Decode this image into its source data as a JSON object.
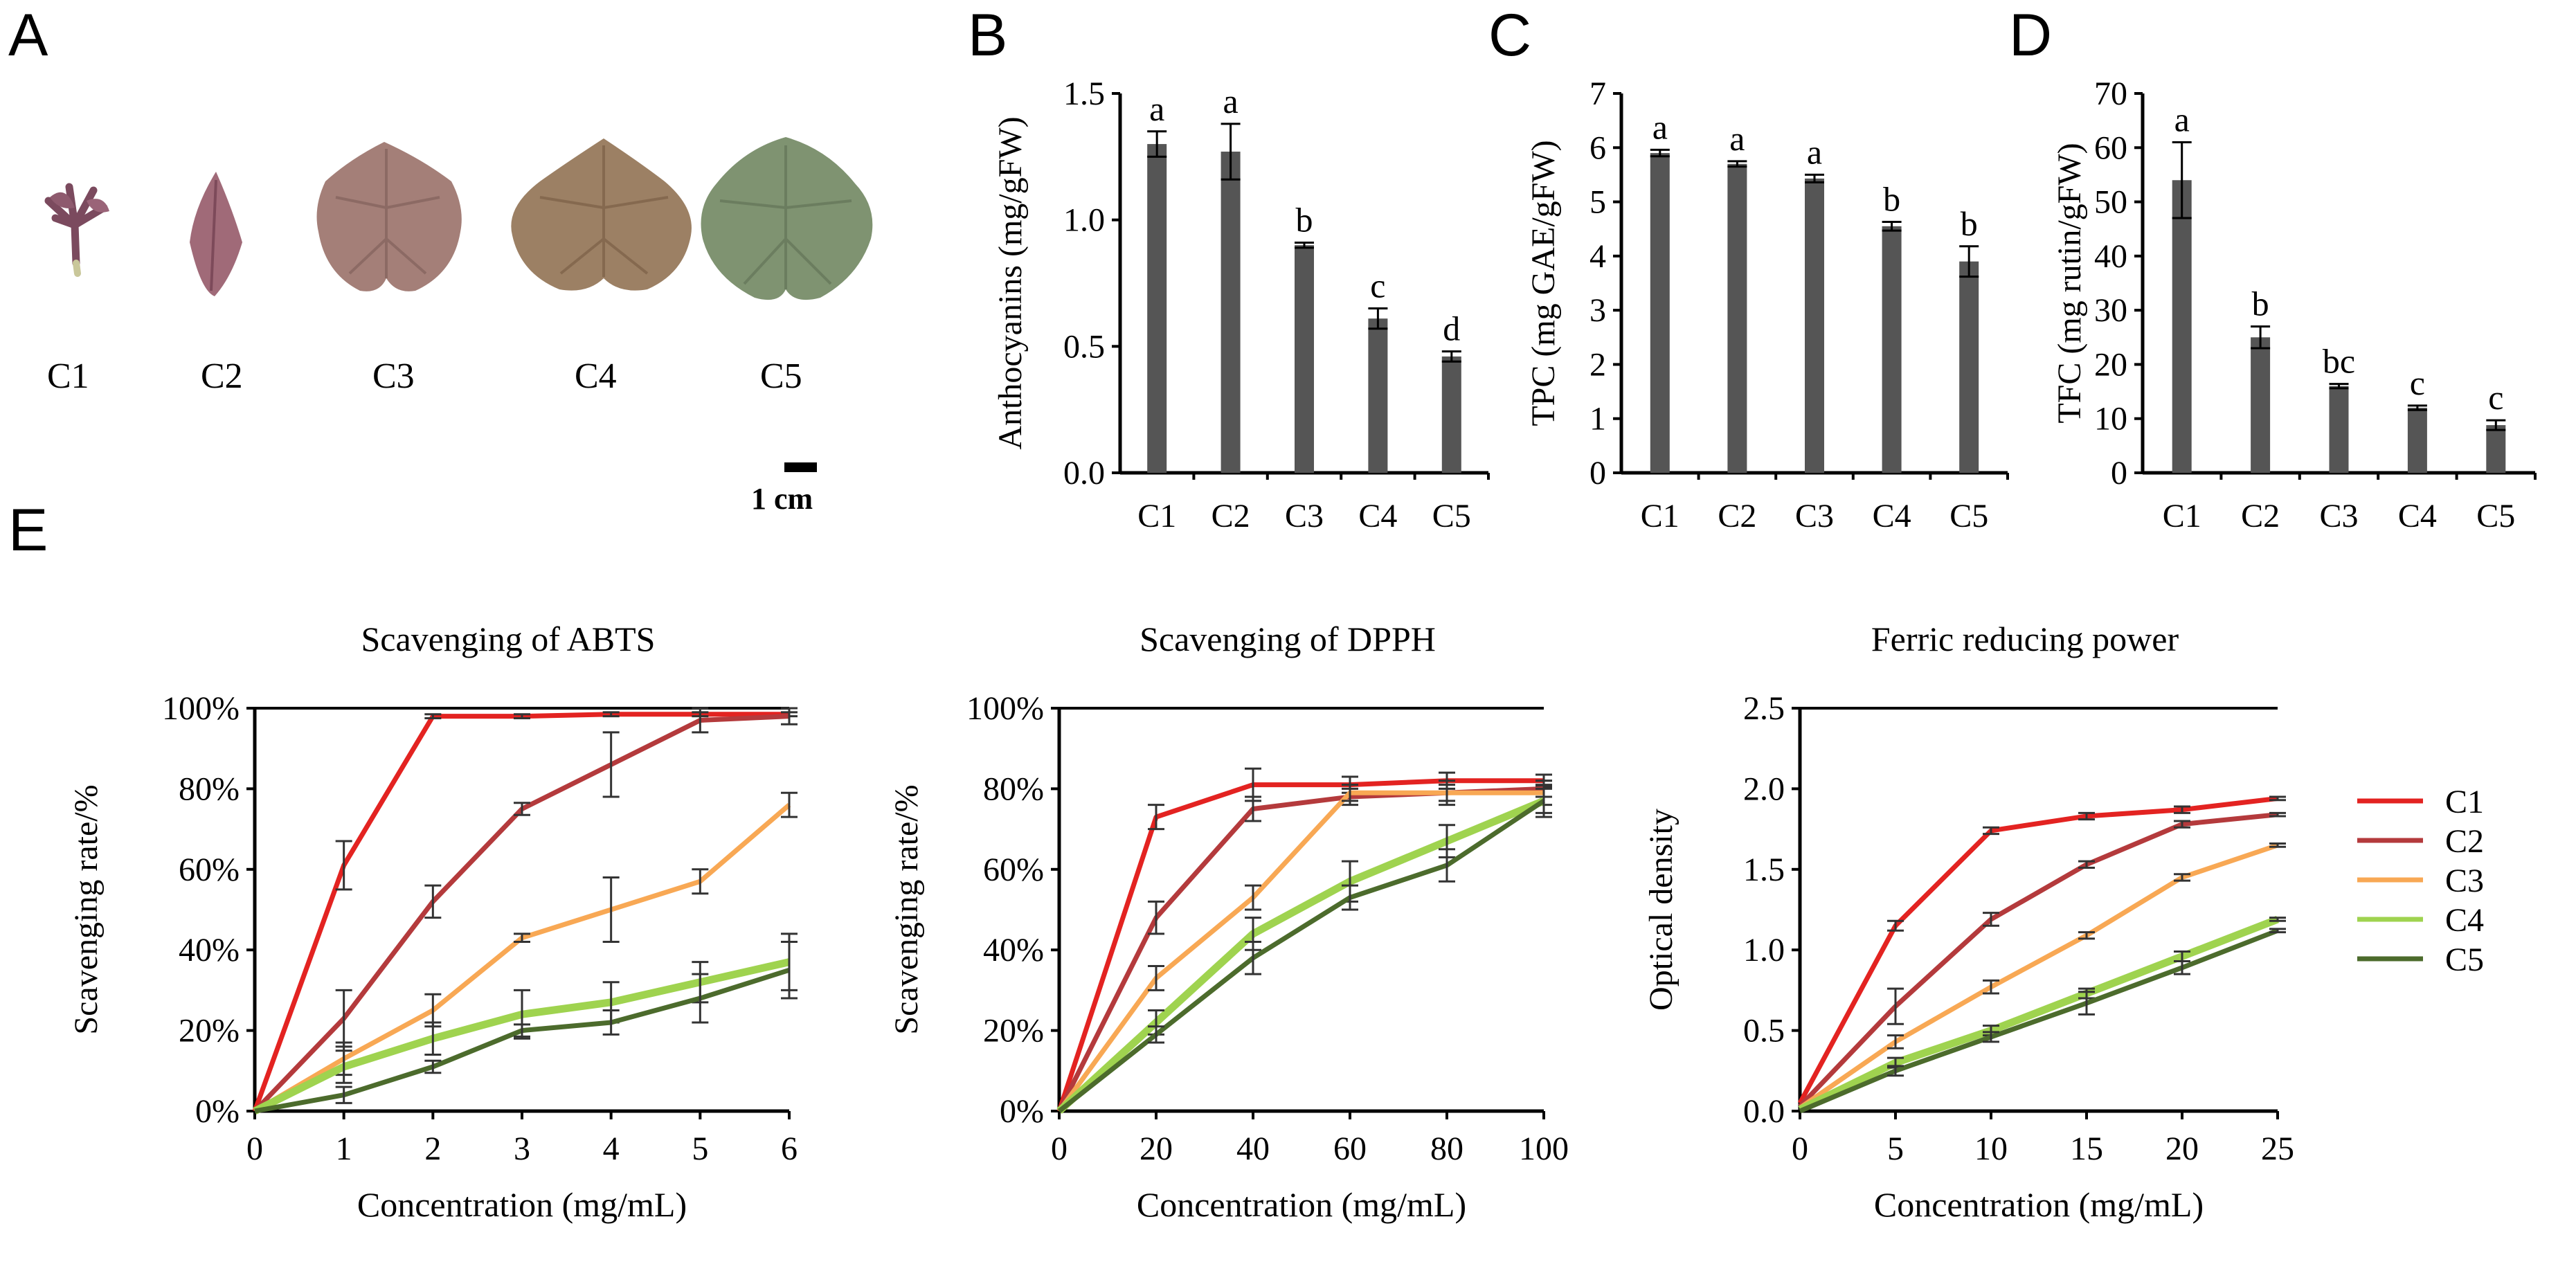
{
  "panel_labels": {
    "A": "A",
    "B": "B",
    "C": "C",
    "D": "D",
    "E": "E"
  },
  "panel_a": {
    "leaves": [
      "C1",
      "C2",
      "C3",
      "C4",
      "C5"
    ],
    "scale_bar_label": "1 cm"
  },
  "colors": {
    "bar": "#555555",
    "C1": "#e32321",
    "C2": "#b43a3c",
    "C3": "#f8a854",
    "C4": "#9fd34f",
    "C5": "#4c6b2c"
  },
  "chart_data": [
    {
      "id": "B",
      "type": "bar",
      "ylabel": "Anthocyanins (mg/gFW)",
      "categories": [
        "C1",
        "C2",
        "C3",
        "C4",
        "C5"
      ],
      "values": [
        1.3,
        1.27,
        0.9,
        0.61,
        0.46
      ],
      "errors": [
        0.05,
        0.11,
        0.01,
        0.04,
        0.02
      ],
      "letters": [
        "a",
        "a",
        "b",
        "c",
        "d"
      ],
      "ylim": [
        0,
        1.5
      ],
      "yticks": [
        0,
        0.5,
        1.0,
        1.5
      ],
      "ytick_labels": [
        "0.0",
        "0.5",
        "1.0",
        "1.5"
      ]
    },
    {
      "id": "C",
      "type": "bar",
      "ylabel": "TPC (mg GAE/gFW)",
      "categories": [
        "C1",
        "C2",
        "C3",
        "C4",
        "C5"
      ],
      "values": [
        5.9,
        5.7,
        5.43,
        4.55,
        3.9
      ],
      "errors": [
        0.06,
        0.05,
        0.07,
        0.08,
        0.28
      ],
      "letters": [
        "a",
        "a",
        "a",
        "b",
        "b"
      ],
      "ylim": [
        0,
        7
      ],
      "yticks": [
        0,
        1,
        2,
        3,
        4,
        5,
        6,
        7
      ],
      "ytick_labels": [
        "0",
        "1",
        "2",
        "3",
        "4",
        "5",
        "6",
        "7"
      ]
    },
    {
      "id": "D",
      "type": "bar",
      "ylabel": "TFC (mg rutin/gFW)",
      "categories": [
        "C1",
        "C2",
        "C3",
        "C4",
        "C5"
      ],
      "values": [
        54,
        25,
        16,
        12,
        8.8
      ],
      "errors": [
        7,
        2,
        0.4,
        0.4,
        0.9
      ],
      "letters": [
        "a",
        "b",
        "bc",
        "c",
        "c"
      ],
      "ylim": [
        0,
        70
      ],
      "yticks": [
        0,
        10,
        20,
        30,
        40,
        50,
        60,
        70
      ],
      "ytick_labels": [
        "0",
        "10",
        "20",
        "30",
        "40",
        "50",
        "60",
        "70"
      ]
    },
    {
      "id": "E1",
      "type": "line",
      "title": "Scavenging of ABTS",
      "xlabel": "Concentration (mg/mL)",
      "ylabel": "Scavenging rate/%",
      "x": [
        0,
        1,
        2,
        3,
        4,
        5,
        6
      ],
      "xlim": [
        0,
        6
      ],
      "ylim": [
        0,
        100
      ],
      "xticks": [
        0,
        1,
        2,
        3,
        4,
        5,
        6
      ],
      "xtick_labels": [
        "0",
        "1",
        "2",
        "3",
        "4",
        "5",
        "6"
      ],
      "yticks": [
        0,
        20,
        40,
        60,
        80,
        100
      ],
      "ytick_labels": [
        "0%",
        "20%",
        "40%",
        "60%",
        "80%",
        "100%"
      ],
      "series": [
        {
          "name": "C1",
          "values": [
            0,
            61,
            98,
            98,
            98.5,
            98.5,
            98.5
          ],
          "errors": [
            0,
            6,
            0.5,
            0.5,
            0.5,
            0.5,
            0.5
          ]
        },
        {
          "name": "C2",
          "values": [
            0,
            23,
            52,
            75,
            86,
            97,
            98
          ],
          "errors": [
            0,
            7,
            4,
            1.5,
            8,
            3,
            2
          ]
        },
        {
          "name": "C3",
          "values": [
            0,
            13,
            25,
            43,
            50,
            57,
            76
          ],
          "errors": [
            0,
            4,
            4,
            1,
            8,
            3,
            3
          ]
        },
        {
          "name": "C4",
          "values": [
            0,
            11,
            18,
            24,
            27,
            32,
            37
          ],
          "errors": [
            0,
            4,
            4,
            6,
            5,
            5,
            7
          ]
        },
        {
          "name": "C5",
          "values": [
            0,
            4,
            11,
            20,
            22,
            28,
            35
          ],
          "errors": [
            0,
            2,
            1.5,
            1.5,
            3,
            6,
            7
          ]
        }
      ]
    },
    {
      "id": "E2",
      "type": "line",
      "title": "Scavenging of DPPH",
      "xlabel": "Concentration (mg/mL)",
      "ylabel": "Scavenging rate/%",
      "x": [
        0,
        20,
        40,
        60,
        80,
        100
      ],
      "xlim": [
        0,
        100
      ],
      "ylim": [
        0,
        100
      ],
      "xticks": [
        0,
        20,
        40,
        60,
        80,
        100
      ],
      "xtick_labels": [
        "0",
        "20",
        "40",
        "60",
        "80",
        "100"
      ],
      "yticks": [
        0,
        20,
        40,
        60,
        80,
        100
      ],
      "ytick_labels": [
        "0%",
        "20%",
        "40%",
        "60%",
        "80%",
        "100%"
      ],
      "series": [
        {
          "name": "C1",
          "values": [
            0,
            73,
            81,
            81,
            82,
            82
          ],
          "errors": [
            0,
            3,
            4,
            2,
            2,
            1.5
          ]
        },
        {
          "name": "C2",
          "values": [
            0,
            48,
            75,
            78,
            79,
            80
          ],
          "errors": [
            0,
            4,
            3,
            2,
            2,
            2
          ]
        },
        {
          "name": "C3",
          "values": [
            0,
            33,
            53,
            79,
            79,
            79
          ],
          "errors": [
            0,
            3,
            3,
            2,
            3,
            3
          ]
        },
        {
          "name": "C4",
          "values": [
            0,
            22,
            44,
            57,
            67,
            77
          ],
          "errors": [
            0,
            3,
            4,
            5,
            4,
            3
          ]
        },
        {
          "name": "C5",
          "values": [
            0,
            19,
            38,
            53,
            61,
            77
          ],
          "errors": [
            0,
            2,
            4,
            3,
            4,
            4
          ]
        }
      ]
    },
    {
      "id": "E3",
      "type": "line",
      "title": "Ferric reducing power",
      "xlabel": "Concentration (mg/mL)",
      "ylabel": "Optical density",
      "x": [
        0,
        5,
        10,
        15,
        20,
        25
      ],
      "xlim": [
        0,
        25
      ],
      "ylim": [
        0,
        2.5
      ],
      "xticks": [
        0,
        5,
        10,
        15,
        20,
        25
      ],
      "xtick_labels": [
        "0",
        "5",
        "10",
        "15",
        "20",
        "25"
      ],
      "yticks": [
        0,
        0.5,
        1.0,
        1.5,
        2.0,
        2.5
      ],
      "ytick_labels": [
        "0.0",
        "0.5",
        "1.0",
        "1.5",
        "2.0",
        "2.5"
      ],
      "series": [
        {
          "name": "C1",
          "values": [
            0.05,
            1.15,
            1.74,
            1.83,
            1.87,
            1.94
          ],
          "errors": [
            0.02,
            0.03,
            0.02,
            0.02,
            0.02,
            0.01
          ]
        },
        {
          "name": "C2",
          "values": [
            0.03,
            0.65,
            1.19,
            1.53,
            1.78,
            1.84
          ],
          "errors": [
            0.02,
            0.11,
            0.04,
            0.02,
            0.02,
            0.01
          ]
        },
        {
          "name": "C3",
          "values": [
            0.02,
            0.43,
            0.77,
            1.09,
            1.45,
            1.65
          ],
          "errors": [
            0.02,
            0.04,
            0.04,
            0.02,
            0.02,
            0.01
          ]
        },
        {
          "name": "C4",
          "values": [
            0.01,
            0.3,
            0.5,
            0.73,
            0.96,
            1.19
          ],
          "errors": [
            0.02,
            0.03,
            0.03,
            0.03,
            0.03,
            0.01
          ]
        },
        {
          "name": "C5",
          "values": [
            0.0,
            0.25,
            0.46,
            0.67,
            0.89,
            1.12
          ],
          "errors": [
            0.02,
            0.03,
            0.03,
            0.07,
            0.04,
            0.01
          ]
        }
      ]
    }
  ],
  "legend": {
    "items": [
      "C1",
      "C2",
      "C3",
      "C4",
      "C5"
    ]
  }
}
